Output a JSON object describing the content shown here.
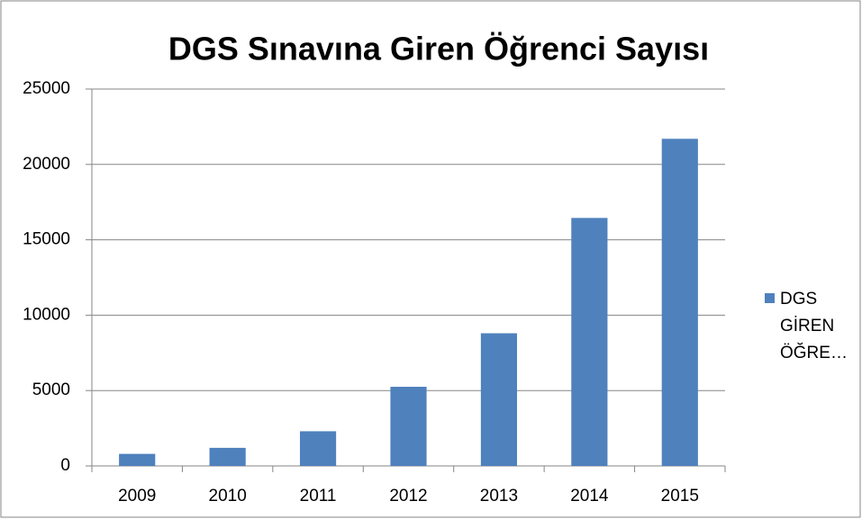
{
  "chart_data": {
    "type": "bar",
    "title": "DGS Sınavına Giren Öğrenci Sayısı",
    "categories": [
      "2009",
      "2010",
      "2011",
      "2012",
      "2013",
      "2014",
      "2015"
    ],
    "series": [
      {
        "name": "DGS GİREN ÖĞRE…",
        "color": "#4f81bd",
        "values": [
          800,
          1200,
          2300,
          5250,
          8800,
          16450,
          21700
        ]
      }
    ],
    "ylim": [
      0,
      25000
    ],
    "yticks": [
      0,
      5000,
      10000,
      15000,
      20000,
      25000
    ],
    "grid": true,
    "legend": "right"
  }
}
